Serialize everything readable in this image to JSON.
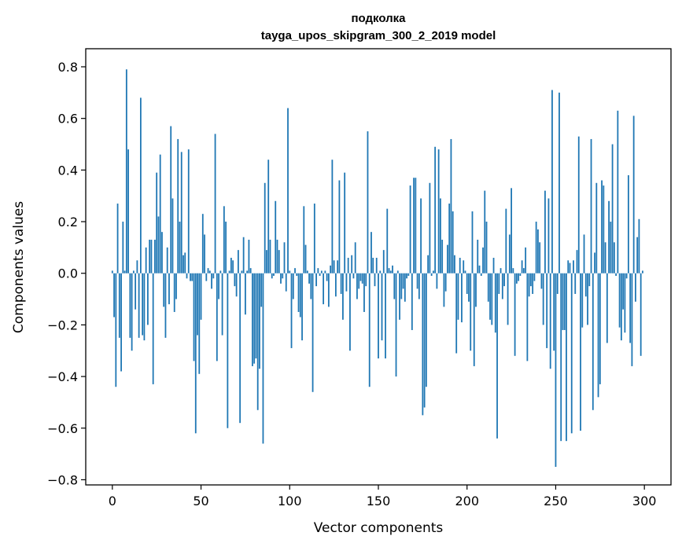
{
  "chart_data": {
    "type": "bar",
    "title_line1": "подколка",
    "title_line2": "tayga_upos_skipgram_300_2_2019 model",
    "xlabel": "Vector components",
    "ylabel": "Components values",
    "xlim": [
      -15,
      315
    ],
    "ylim": [
      -0.82,
      0.87
    ],
    "xticks": [
      0,
      50,
      100,
      150,
      200,
      250,
      300
    ],
    "xtick_labels": [
      "0",
      "50",
      "100",
      "150",
      "200",
      "250",
      "300"
    ],
    "yticks": [
      -0.8,
      -0.6,
      -0.4,
      -0.2,
      0.0,
      0.2,
      0.4,
      0.6,
      0.8
    ],
    "ytick_labels": [
      "−0.8",
      "−0.6",
      "−0.4",
      "−0.2",
      "0.0",
      "0.2",
      "0.4",
      "0.6",
      "0.8"
    ],
    "bar_color": "#1f77b4",
    "x": "0..299 (component index)",
    "values": [
      0.01,
      -0.17,
      -0.44,
      0.27,
      -0.25,
      -0.38,
      0.2,
      0.01,
      0.79,
      0.48,
      -0.25,
      -0.3,
      0.01,
      -0.14,
      0.05,
      -0.25,
      0.68,
      -0.24,
      -0.26,
      0.1,
      -0.2,
      0.13,
      0.13,
      -0.43,
      0.13,
      0.39,
      0.22,
      0.46,
      0.16,
      -0.13,
      -0.25,
      0.1,
      -0.12,
      0.57,
      0.29,
      -0.15,
      -0.1,
      0.52,
      0.2,
      0.47,
      0.07,
      0.08,
      -0.02,
      0.48,
      -0.03,
      -0.03,
      -0.34,
      -0.62,
      -0.24,
      -0.39,
      -0.18,
      0.23,
      0.15,
      -0.03,
      0.02,
      0.01,
      -0.06,
      -0.02,
      0.54,
      -0.34,
      -0.1,
      0.01,
      -0.24,
      0.26,
      0.2,
      -0.6,
      0.01,
      0.06,
      0.05,
      -0.05,
      -0.09,
      0.09,
      -0.58,
      0.01,
      0.14,
      -0.16,
      0.01,
      0.13,
      0.02,
      -0.36,
      -0.35,
      -0.33,
      -0.53,
      -0.37,
      -0.13,
      -0.66,
      0.35,
      0.09,
      0.44,
      0.13,
      -0.02,
      -0.01,
      0.28,
      0.13,
      0.09,
      -0.04,
      -0.02,
      0.12,
      -0.07,
      0.64,
      0.01,
      -0.29,
      -0.1,
      0.02,
      -0.01,
      -0.15,
      -0.17,
      -0.26,
      0.26,
      0.11,
      0.01,
      -0.04,
      -0.1,
      -0.46,
      0.27,
      -0.05,
      0.02,
      -0.01,
      0.01,
      -0.12,
      0.01,
      -0.03,
      -0.13,
      0.03,
      0.44,
      0.05,
      -0.09,
      0.05,
      0.36,
      -0.08,
      -0.18,
      0.39,
      -0.07,
      0.06,
      -0.3,
      0.07,
      -0.02,
      0.12,
      -0.1,
      -0.06,
      -0.03,
      -0.04,
      -0.15,
      -0.05,
      0.55,
      -0.44,
      0.16,
      0.06,
      -0.05,
      0.06,
      -0.33,
      0.01,
      -0.26,
      0.09,
      -0.33,
      0.25,
      0.02,
      0.01,
      0.03,
      -0.1,
      -0.4,
      0.01,
      -0.18,
      -0.1,
      -0.06,
      -0.11,
      -0.02,
      -0.01,
      0.34,
      -0.22,
      0.37,
      0.37,
      -0.06,
      -0.1,
      0.29,
      -0.55,
      -0.52,
      -0.44,
      0.07,
      0.35,
      -0.01,
      0.01,
      0.49,
      -0.06,
      0.48,
      0.29,
      0.13,
      -0.13,
      -0.07,
      0.11,
      0.27,
      0.52,
      0.24,
      0.07,
      -0.31,
      -0.18,
      0.06,
      -0.19,
      0.05,
      0.01,
      -0.08,
      -0.11,
      -0.3,
      0.24,
      -0.36,
      -0.13,
      0.13,
      0.03,
      -0.01,
      0.1,
      0.32,
      0.2,
      -0.11,
      -0.18,
      -0.2,
      0.06,
      -0.23,
      -0.64,
      -0.08,
      0.02,
      -0.1,
      -0.05,
      0.25,
      -0.2,
      0.15,
      0.33,
      0.02,
      -0.32,
      -0.04,
      -0.03,
      -0.01,
      0.05,
      0.02,
      0.1,
      -0.34,
      -0.09,
      -0.05,
      -0.08,
      -0.03,
      0.2,
      0.17,
      0.12,
      -0.06,
      -0.2,
      0.32,
      -0.29,
      0.29,
      -0.37,
      0.71,
      -0.3,
      -0.75,
      -0.08,
      0.7,
      -0.65,
      -0.22,
      -0.22,
      -0.65,
      0.05,
      0.04,
      -0.62,
      0.05,
      -0.08,
      0.09,
      0.53,
      -0.61,
      -0.21,
      0.15,
      -0.09,
      -0.2,
      -0.05,
      0.52,
      -0.53,
      0.08,
      0.35,
      -0.48,
      -0.43,
      0.36,
      0.34,
      0.12,
      -0.27,
      0.28,
      0.2,
      0.5,
      0.12,
      -0.01,
      0.63,
      -0.21,
      -0.26,
      -0.14,
      -0.23,
      -0.02,
      0.38,
      -0.27,
      -0.36,
      0.61,
      -0.11,
      0.14,
      0.21,
      -0.32,
      0.01
    ]
  }
}
